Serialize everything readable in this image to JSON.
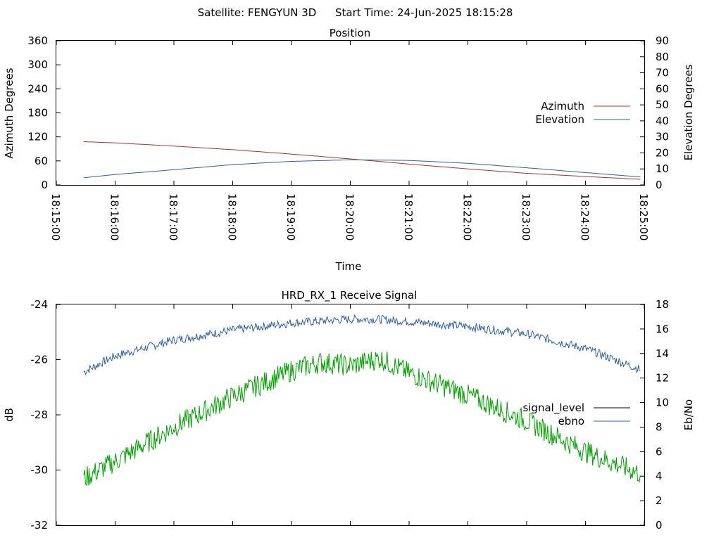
{
  "header": {
    "satellite": "Satellite: FENGYUN 3D",
    "start_time": "Start Time: 24-Jun-2025 18:15:28"
  },
  "chart_data": [
    {
      "type": "line",
      "title": "Position",
      "xlabel": "Time",
      "ylabel": "Azimuth Degrees",
      "y2label": "Elevation Degrees",
      "x_ticks": [
        "18:15:00",
        "18:16:00",
        "18:17:00",
        "18:18:00",
        "18:19:00",
        "18:20:00",
        "18:21:00",
        "18:22:00",
        "18:23:00",
        "18:24:00",
        "18:25:00"
      ],
      "xlim": [
        "18:15:00",
        "18:25:00"
      ],
      "ylim": [
        0,
        360
      ],
      "y_ticks": [
        0,
        60,
        120,
        180,
        240,
        300,
        360
      ],
      "y2lim": [
        0,
        90
      ],
      "y2_ticks": [
        0,
        10,
        20,
        30,
        40,
        50,
        60,
        70,
        80,
        90
      ],
      "legend_position": "right",
      "series": [
        {
          "name": "Azimuth",
          "axis": "left",
          "color": "#b03030",
          "x": [
            "18:15:28",
            "18:16:00",
            "18:17:00",
            "18:18:00",
            "18:19:00",
            "18:20:00",
            "18:21:00",
            "18:22:00",
            "18:23:00",
            "18:24:00",
            "18:24:56"
          ],
          "values": [
            108,
            105,
            97,
            88,
            77,
            65,
            52,
            40,
            29,
            21,
            14
          ]
        },
        {
          "name": "Elevation",
          "axis": "right",
          "color": "#3060a0",
          "x": [
            "18:15:28",
            "18:16:00",
            "18:17:00",
            "18:18:00",
            "18:19:00",
            "18:20:00",
            "18:21:00",
            "18:22:00",
            "18:23:00",
            "18:24:00",
            "18:24:56"
          ],
          "values": [
            4.5,
            6.5,
            9.5,
            12.7,
            14.7,
            15.7,
            15.3,
            13.5,
            10.7,
            7.7,
            5
          ]
        }
      ]
    },
    {
      "type": "line",
      "title": "HRD_RX_1 Receive Signal",
      "xlabel": "",
      "ylabel": "dB",
      "y2label": "Eb/No",
      "xlim": [
        "18:15:00",
        "18:25:00"
      ],
      "ylim": [
        -32,
        -24
      ],
      "y_ticks": [
        -32,
        -30,
        -28,
        -26,
        -24
      ],
      "y2lim": [
        0,
        18
      ],
      "y2_ticks": [
        0,
        2,
        4,
        6,
        8,
        10,
        12,
        14,
        16,
        18
      ],
      "legend_position": "right",
      "series": [
        {
          "name": "signal_level",
          "axis": "left",
          "color": "#000000",
          "x": [],
          "values": []
        },
        {
          "name": "ebno",
          "axis": "right",
          "color": "#3060a0",
          "x": [
            "18:15:28",
            "18:16:00",
            "18:17:00",
            "18:18:00",
            "18:19:00",
            "18:20:00",
            "18:20:30",
            "18:21:00",
            "18:22:00",
            "18:23:00",
            "18:24:00",
            "18:24:56"
          ],
          "values": [
            12.5,
            13.8,
            15.1,
            15.9,
            16.5,
            16.8,
            16.8,
            16.6,
            16.2,
            15.6,
            14.4,
            12.7
          ]
        },
        {
          "name": "",
          "axis": "right",
          "color": "#00a000",
          "x": [
            "18:15:28",
            "18:16:00",
            "18:17:00",
            "18:18:00",
            "18:19:00",
            "18:19:30",
            "18:20:00",
            "18:20:30",
            "18:21:00",
            "18:22:00",
            "18:23:00",
            "18:24:00",
            "18:24:56"
          ],
          "values": [
            3.8,
            5.2,
            8.0,
            10.5,
            12.6,
            13.3,
            13.0,
            13.6,
            12.4,
            10.6,
            8.5,
            6.0,
            4.2
          ]
        }
      ]
    }
  ]
}
